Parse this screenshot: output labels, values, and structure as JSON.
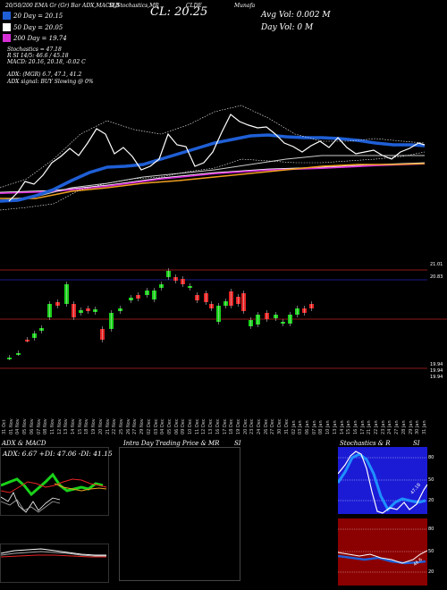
{
  "header": {
    "left_title": "20/50/200 EMA Gr (Gr) Bar ADX,MACD,B",
    "mid_title": "SI,Stochastics,MR",
    "ticker": "CLDE",
    "right_title": "Munafa",
    "close_label": "CL: 20.25",
    "avg_vol": "Avg Vol: 0.002  M",
    "day_vol": "Day Vol: 0   M"
  },
  "legend": [
    {
      "label": "20  Day  = 20.15",
      "color": "#1f5fd6"
    },
    {
      "label": "50  Day  = 20.05",
      "color": "#ffffff"
    },
    {
      "label": "200  Day  = 19.74",
      "color": "#d62fd6"
    }
  ],
  "info_lines": [
    "Stochastics = 47.18",
    "R                    SI 14/5: 46.6  / 45.18",
    "MACD: 20.16,  20.18,  -0.02  C",
    "ADX:                          (MGR) 6.7,   47.1,  41.2",
    "ADX  signal:                         BUY Slowing @ 0%"
  ],
  "price_labels": {
    "top": "21.01",
    "upper": "20.83",
    "bottom1": "19.94",
    "bottom2": "19.94",
    "bottom3": "19.94"
  },
  "dates": [
    "31 Oct",
    "01 Nov",
    "04 Nov",
    "05 Nov",
    "06 Nov",
    "07 Nov",
    "08 Nov",
    "11 Nov",
    "12 Nov",
    "13 Nov",
    "14 Nov",
    "15 Nov",
    "18 Nov",
    "19 Nov",
    "20 Nov",
    "21 Nov",
    "22 Nov",
    "25 Nov",
    "26 Nov",
    "27 Nov",
    "29 Nov",
    "02 Dec",
    "03 Dec",
    "04 Dec",
    "05 Dec",
    "06 Dec",
    "09 Dec",
    "10 Dec",
    "11 Dec",
    "12 Dec",
    "13 Dec",
    "16 Dec",
    "17 Dec",
    "18 Dec",
    "19 Dec",
    "20 Dec",
    "23 Dec",
    "24 Dec",
    "26 Dec",
    "27 Dec",
    "30 Dec",
    "31 Dec",
    "02 Jan",
    "03 Jan",
    "06 Jan",
    "07 Jan",
    "08 Jan",
    "10 Jan",
    "13 Jan",
    "14 Jan",
    "15 Jan",
    "16 Jan",
    "17 Jan",
    "21 Jan",
    "22 Jan",
    "23 Jan",
    "24 Jan",
    "27 Jan",
    "28 Jan",
    "29 Jan",
    "30 Jan",
    "31 Jan"
  ],
  "panels": {
    "adx_title": "ADX  & MACD",
    "adx_values": "ADX: 6.67  +DI: 47.06  -DI: 41.15",
    "intra_title": "Intra  Day Trading Price  & MR",
    "intra_si": "SI",
    "stoch_title": "Stochastics  & R",
    "stoch_si": "SI",
    "stoch_levels": [
      "80",
      "50",
      "20"
    ],
    "stoch_mark": "47.18",
    "rsi_levels": [
      "80",
      "50",
      "20"
    ],
    "rsi_mark": "46.6"
  },
  "colors": {
    "ema20": "#1f5fd6",
    "ema50": "#ffffff",
    "ema200": "#d62fd6",
    "up": "#19d219",
    "down": "#e82323",
    "rsi_bg": "#8b0000",
    "stoch_bg": "#1b1bd6"
  }
}
